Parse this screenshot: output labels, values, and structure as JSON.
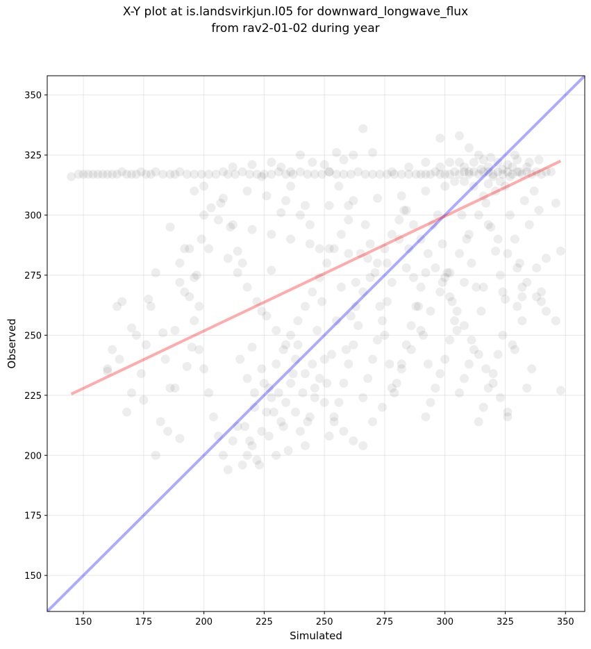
{
  "chart_data": {
    "type": "scatter",
    "title": "X-Y plot at is.landsvirkjun.l05 for downward_longwave_flux",
    "subtitle": "from rav2-01-02 during year",
    "xlabel": "Simulated",
    "ylabel": "Observed",
    "xlim": [
      135,
      358
    ],
    "ylim": [
      135,
      358
    ],
    "xticks": [
      150,
      175,
      200,
      225,
      250,
      275,
      300,
      325,
      350
    ],
    "yticks": [
      150,
      175,
      200,
      225,
      250,
      275,
      300,
      325,
      350
    ],
    "grid": true,
    "point_color": "#000000",
    "point_alpha": 0.07,
    "one_to_one_line": {
      "color": "#0000ff",
      "alpha": 0.33,
      "x": [
        135,
        358
      ],
      "y": [
        135,
        358
      ]
    },
    "regression_line": {
      "color": "#ff0000",
      "alpha": 0.33,
      "x": [
        145,
        348
      ],
      "y": [
        225.5,
        322.5
      ]
    },
    "points": [
      [
        145,
        316
      ],
      [
        148,
        317
      ],
      [
        150,
        317
      ],
      [
        152,
        317
      ],
      [
        154,
        317
      ],
      [
        156,
        317
      ],
      [
        158,
        317
      ],
      [
        160,
        317
      ],
      [
        162,
        317
      ],
      [
        164,
        317
      ],
      [
        166,
        318
      ],
      [
        168,
        317
      ],
      [
        170,
        317
      ],
      [
        172,
        317
      ],
      [
        174,
        318
      ],
      [
        176,
        317
      ],
      [
        178,
        317
      ],
      [
        180,
        318
      ],
      [
        183,
        317
      ],
      [
        186,
        317
      ],
      [
        188,
        317
      ],
      [
        190,
        318
      ],
      [
        193,
        317
      ],
      [
        196,
        317
      ],
      [
        199,
        317
      ],
      [
        202,
        317
      ],
      [
        205,
        317
      ],
      [
        208,
        318
      ],
      [
        210,
        317
      ],
      [
        213,
        317
      ],
      [
        216,
        318
      ],
      [
        219,
        317
      ],
      [
        222,
        317
      ],
      [
        225,
        317
      ],
      [
        228,
        317
      ],
      [
        231,
        318
      ],
      [
        234,
        317
      ],
      [
        237,
        317
      ],
      [
        240,
        318
      ],
      [
        243,
        317
      ],
      [
        246,
        317
      ],
      [
        249,
        317
      ],
      [
        252,
        318
      ],
      [
        255,
        317
      ],
      [
        258,
        317
      ],
      [
        261,
        317
      ],
      [
        264,
        318
      ],
      [
        267,
        317
      ],
      [
        270,
        317
      ],
      [
        273,
        317
      ],
      [
        276,
        317
      ],
      [
        279,
        317
      ],
      [
        282,
        317
      ],
      [
        285,
        317
      ],
      [
        288,
        317
      ],
      [
        290,
        317
      ],
      [
        292,
        317
      ],
      [
        294,
        317
      ],
      [
        296,
        318
      ],
      [
        298,
        317
      ],
      [
        300,
        317
      ],
      [
        302,
        317
      ],
      [
        304,
        318
      ],
      [
        306,
        317
      ],
      [
        308,
        318
      ],
      [
        310,
        317
      ],
      [
        312,
        318
      ],
      [
        314,
        317
      ],
      [
        316,
        318
      ],
      [
        318,
        318
      ],
      [
        320,
        317
      ],
      [
        322,
        318
      ],
      [
        324,
        317
      ],
      [
        326,
        318
      ],
      [
        328,
        317
      ],
      [
        330,
        318
      ],
      [
        332,
        317
      ],
      [
        334,
        318
      ],
      [
        336,
        317
      ],
      [
        338,
        318
      ],
      [
        340,
        317
      ],
      [
        342,
        318
      ],
      [
        344,
        318
      ],
      [
        322,
        322
      ],
      [
        318,
        320
      ],
      [
        326,
        321
      ],
      [
        312,
        322
      ],
      [
        330,
        323
      ],
      [
        315,
        319
      ],
      [
        320,
        316
      ],
      [
        324,
        319
      ],
      [
        328,
        320
      ],
      [
        308,
        320
      ],
      [
        316,
        323
      ],
      [
        334,
        320
      ],
      [
        306,
        322
      ],
      [
        310,
        318
      ],
      [
        319,
        324
      ],
      [
        323,
        314
      ],
      [
        327,
        316
      ],
      [
        331,
        318
      ],
      [
        335,
        322
      ],
      [
        339,
        323
      ],
      [
        314,
        325
      ],
      [
        318,
        313
      ],
      [
        302,
        322
      ],
      [
        298,
        320
      ],
      [
        321,
        310
      ],
      [
        325,
        312
      ],
      [
        329,
        325
      ],
      [
        304,
        314
      ],
      [
        312,
        312
      ],
      [
        316,
        308
      ],
      [
        220,
        321
      ],
      [
        232,
        320
      ],
      [
        245,
        322
      ],
      [
        258,
        323
      ],
      [
        266,
        336
      ],
      [
        270,
        326
      ],
      [
        262,
        325
      ],
      [
        255,
        326
      ],
      [
        298,
        332
      ],
      [
        306,
        333
      ],
      [
        310,
        328
      ],
      [
        240,
        325
      ],
      [
        228,
        322
      ],
      [
        285,
        320
      ],
      [
        292,
        322
      ],
      [
        278,
        318
      ],
      [
        250,
        321
      ],
      [
        236,
        318
      ],
      [
        224,
        316
      ],
      [
        212,
        320
      ],
      [
        200,
        312
      ],
      [
        196,
        310
      ],
      [
        208,
        307
      ],
      [
        218,
        310
      ],
      [
        226,
        308
      ],
      [
        234,
        306
      ],
      [
        242,
        304
      ],
      [
        252,
        304
      ],
      [
        262,
        306
      ],
      [
        272,
        307
      ],
      [
        282,
        308
      ],
      [
        292,
        310
      ],
      [
        300,
        312
      ],
      [
        308,
        314
      ],
      [
        200,
        300
      ],
      [
        206,
        298
      ],
      [
        212,
        296
      ],
      [
        220,
        294
      ],
      [
        228,
        292
      ],
      [
        236,
        290
      ],
      [
        244,
        288
      ],
      [
        252,
        286
      ],
      [
        260,
        284
      ],
      [
        268,
        282
      ],
      [
        276,
        280
      ],
      [
        284,
        278
      ],
      [
        292,
        276
      ],
      [
        300,
        274
      ],
      [
        308,
        272
      ],
      [
        316,
        270
      ],
      [
        324,
        268
      ],
      [
        332,
        266
      ],
      [
        340,
        264
      ],
      [
        186,
        295
      ],
      [
        194,
        286
      ],
      [
        190,
        280
      ],
      [
        196,
        274
      ],
      [
        192,
        268
      ],
      [
        198,
        262
      ],
      [
        202,
        286
      ],
      [
        210,
        282
      ],
      [
        214,
        276
      ],
      [
        218,
        270
      ],
      [
        222,
        264
      ],
      [
        226,
        258
      ],
      [
        230,
        252
      ],
      [
        234,
        246
      ],
      [
        238,
        240
      ],
      [
        242,
        234
      ],
      [
        246,
        228
      ],
      [
        250,
        222
      ],
      [
        254,
        216
      ],
      [
        258,
        210
      ],
      [
        262,
        206
      ],
      [
        266,
        204
      ],
      [
        270,
        214
      ],
      [
        274,
        220
      ],
      [
        278,
        228
      ],
      [
        282,
        236
      ],
      [
        286,
        244
      ],
      [
        290,
        252
      ],
      [
        294,
        260
      ],
      [
        298,
        268
      ],
      [
        302,
        276
      ],
      [
        306,
        284
      ],
      [
        310,
        292
      ],
      [
        314,
        300
      ],
      [
        318,
        296
      ],
      [
        322,
        290
      ],
      [
        326,
        284
      ],
      [
        330,
        278
      ],
      [
        334,
        272
      ],
      [
        338,
        266
      ],
      [
        342,
        260
      ],
      [
        346,
        256
      ],
      [
        160,
        236
      ],
      [
        162,
        244
      ],
      [
        164,
        262
      ],
      [
        166,
        264
      ],
      [
        168,
        218
      ],
      [
        170,
        226
      ],
      [
        172,
        250
      ],
      [
        174,
        234
      ],
      [
        176,
        246
      ],
      [
        178,
        262
      ],
      [
        180,
        200
      ],
      [
        182,
        214
      ],
      [
        184,
        240
      ],
      [
        186,
        228
      ],
      [
        188,
        252
      ],
      [
        190,
        272
      ],
      [
        192,
        286
      ],
      [
        194,
        266
      ],
      [
        196,
        256
      ],
      [
        198,
        244
      ],
      [
        200,
        236
      ],
      [
        202,
        226
      ],
      [
        204,
        216
      ],
      [
        206,
        208
      ],
      [
        208,
        200
      ],
      [
        210,
        194
      ],
      [
        212,
        206
      ],
      [
        214,
        212
      ],
      [
        216,
        196
      ],
      [
        218,
        200
      ],
      [
        220,
        204
      ],
      [
        222,
        198
      ],
      [
        224,
        210
      ],
      [
        226,
        218
      ],
      [
        228,
        224
      ],
      [
        230,
        200
      ],
      [
        232,
        214
      ],
      [
        234,
        222
      ],
      [
        236,
        230
      ],
      [
        238,
        218
      ],
      [
        240,
        210
      ],
      [
        242,
        204
      ],
      [
        244,
        216
      ],
      [
        246,
        224
      ],
      [
        248,
        232
      ],
      [
        250,
        240
      ],
      [
        252,
        208
      ],
      [
        254,
        214
      ],
      [
        256,
        222
      ],
      [
        258,
        230
      ],
      [
        260,
        238
      ],
      [
        262,
        246
      ],
      [
        264,
        254
      ],
      [
        266,
        224
      ],
      [
        268,
        232
      ],
      [
        270,
        240
      ],
      [
        272,
        248
      ],
      [
        274,
        256
      ],
      [
        276,
        264
      ],
      [
        278,
        272
      ],
      [
        280,
        230
      ],
      [
        282,
        238
      ],
      [
        284,
        246
      ],
      [
        286,
        254
      ],
      [
        288,
        262
      ],
      [
        290,
        270
      ],
      [
        292,
        216
      ],
      [
        294,
        222
      ],
      [
        296,
        228
      ],
      [
        298,
        234
      ],
      [
        300,
        240
      ],
      [
        302,
        248
      ],
      [
        304,
        256
      ],
      [
        306,
        226
      ],
      [
        308,
        232
      ],
      [
        310,
        238
      ],
      [
        312,
        244
      ],
      [
        314,
        214
      ],
      [
        316,
        220
      ],
      [
        318,
        228
      ],
      [
        320,
        234
      ],
      [
        322,
        242
      ],
      [
        324,
        250
      ],
      [
        326,
        216
      ],
      [
        328,
        246
      ],
      [
        330,
        262
      ],
      [
        332,
        270
      ],
      [
        334,
        228
      ],
      [
        336,
        236
      ],
      [
        338,
        278
      ],
      [
        340,
        268
      ],
      [
        342,
        282
      ],
      [
        348,
        227
      ],
      [
        348,
        285
      ],
      [
        346,
        305
      ],
      [
        215,
        240
      ],
      [
        218,
        232
      ],
      [
        221,
        226
      ],
      [
        224,
        236
      ],
      [
        227,
        228
      ],
      [
        230,
        238
      ],
      [
        233,
        244
      ],
      [
        236,
        250
      ],
      [
        239,
        256
      ],
      [
        242,
        262
      ],
      [
        245,
        268
      ],
      [
        248,
        274
      ],
      [
        251,
        280
      ],
      [
        254,
        286
      ],
      [
        257,
        292
      ],
      [
        260,
        298
      ],
      [
        263,
        262
      ],
      [
        266,
        268
      ],
      [
        269,
        274
      ],
      [
        272,
        280
      ],
      [
        275,
        286
      ],
      [
        278,
        292
      ],
      [
        281,
        298
      ],
      [
        284,
        302
      ],
      [
        287,
        296
      ],
      [
        290,
        290
      ],
      [
        293,
        284
      ],
      [
        296,
        278
      ],
      [
        299,
        272
      ],
      [
        302,
        266
      ],
      [
        305,
        260
      ],
      [
        308,
        254
      ],
      [
        311,
        248
      ],
      [
        314,
        242
      ],
      [
        317,
        236
      ],
      [
        320,
        230
      ],
      [
        323,
        224
      ],
      [
        326,
        218
      ],
      [
        329,
        244
      ],
      [
        332,
        256
      ],
      [
        217,
        212
      ],
      [
        219,
        206
      ],
      [
        221,
        220
      ],
      [
        223,
        196
      ],
      [
        225,
        230
      ],
      [
        227,
        208
      ],
      [
        229,
        218
      ],
      [
        231,
        226
      ],
      [
        233,
        212
      ],
      [
        235,
        202
      ],
      [
        237,
        234
      ],
      [
        239,
        246
      ],
      [
        241,
        226
      ],
      [
        243,
        214
      ],
      [
        245,
        238
      ],
      [
        247,
        252
      ],
      [
        249,
        264
      ],
      [
        251,
        230
      ],
      [
        253,
        242
      ],
      [
        255,
        256
      ],
      [
        257,
        270
      ],
      [
        259,
        244
      ],
      [
        261,
        258
      ],
      [
        263,
        272
      ],
      [
        265,
        284
      ],
      [
        267,
        296
      ],
      [
        269,
        288
      ],
      [
        271,
        276
      ],
      [
        273,
        262
      ],
      [
        275,
        250
      ],
      [
        277,
        238
      ],
      [
        279,
        226
      ],
      [
        281,
        290
      ],
      [
        283,
        302
      ],
      [
        285,
        286
      ],
      [
        287,
        274
      ],
      [
        289,
        262
      ],
      [
        291,
        250
      ],
      [
        293,
        238
      ],
      [
        295,
        296
      ],
      [
        297,
        300
      ],
      [
        299,
        288
      ],
      [
        301,
        276
      ],
      [
        303,
        264
      ],
      [
        305,
        252
      ],
      [
        307,
        300
      ],
      [
        309,
        290
      ],
      [
        311,
        280
      ],
      [
        313,
        270
      ],
      [
        315,
        260
      ],
      [
        317,
        305
      ],
      [
        319,
        295
      ],
      [
        321,
        285
      ],
      [
        323,
        275
      ],
      [
        325,
        265
      ],
      [
        327,
        300
      ],
      [
        329,
        290
      ],
      [
        331,
        280
      ],
      [
        333,
        306
      ],
      [
        335,
        296
      ],
      [
        337,
        310
      ],
      [
        339,
        302
      ],
      [
        160,
        235
      ],
      [
        165,
        240
      ],
      [
        170,
        253
      ],
      [
        175,
        223
      ],
      [
        177,
        265
      ],
      [
        180,
        276
      ],
      [
        183,
        251
      ],
      [
        185,
        210
      ],
      [
        188,
        228
      ],
      [
        190,
        207
      ],
      [
        193,
        237
      ],
      [
        195,
        245
      ],
      [
        197,
        275
      ],
      [
        199,
        290
      ],
      [
        203,
        303
      ],
      [
        207,
        305
      ],
      [
        211,
        295
      ],
      [
        214,
        285
      ],
      [
        216,
        280
      ],
      [
        220,
        245
      ],
      [
        224,
        260
      ],
      [
        228,
        277
      ],
      [
        232,
        301
      ],
      [
        236,
        312
      ],
      [
        240,
        300
      ],
      [
        244,
        296
      ],
      [
        248,
        286
      ],
      [
        252,
        318
      ],
      [
        256,
        312
      ],
      [
        260,
        304
      ]
    ]
  }
}
